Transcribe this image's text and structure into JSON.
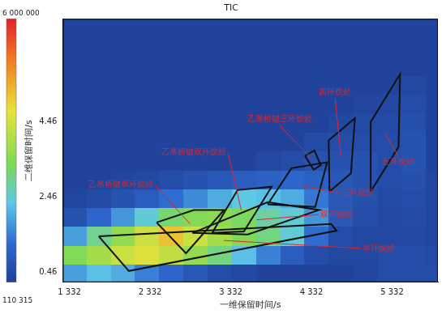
{
  "chart_data": {
    "type": "heatmap",
    "title": "TIC",
    "x_label": "一维保留时间/s",
    "y_label": "二维保留时间/s",
    "xlim": [
      1250,
      5900
    ],
    "xticks": [
      {
        "value": 1332,
        "label": "1 332"
      },
      {
        "value": 2332,
        "label": "2 332"
      },
      {
        "value": 3332,
        "label": "3 332"
      },
      {
        "value": 4332,
        "label": "4 332"
      },
      {
        "value": 5332,
        "label": "5 332"
      }
    ],
    "ylim": [
      0.2,
      7.2
    ],
    "yticks": [
      0.46,
      2.46,
      4.46
    ],
    "grid": false,
    "x_edges": [
      1250,
      1550,
      1850,
      2150,
      2450,
      2750,
      3050,
      3350,
      3650,
      3950,
      4250,
      4550,
      4850,
      5150,
      5450,
      5750,
      5900
    ],
    "y_edges": [
      0.2,
      0.7,
      1.2,
      1.7,
      2.2,
      2.7,
      3.2,
      3.7,
      4.2,
      4.7,
      5.2,
      5.7,
      6.2,
      6.7,
      7.2
    ],
    "cells": [
      [
        1500000,
        1800000,
        1600000,
        1200000,
        900000,
        600000,
        400000,
        300000,
        200000,
        200000,
        200000,
        200000,
        250000,
        400000,
        400000,
        400000
      ],
      [
        2800000,
        3200000,
        3600000,
        3800000,
        3500000,
        3000000,
        2500000,
        1800000,
        1200000,
        700000,
        400000,
        300000,
        300000,
        400000,
        400000,
        350000
      ],
      [
        1500000,
        2400000,
        3000000,
        3600000,
        4300000,
        3600000,
        3200000,
        2800000,
        2500000,
        2000000,
        1000000,
        400000,
        300000,
        300000,
        300000,
        250000
      ],
      [
        500000,
        900000,
        1400000,
        2000000,
        2600000,
        2800000,
        2900000,
        2700000,
        2300000,
        2000000,
        1400000,
        600000,
        400000,
        300000,
        350000,
        250000
      ],
      [
        250000,
        350000,
        500000,
        700000,
        1000000,
        1300000,
        1600000,
        1900000,
        1800000,
        1600000,
        1100000,
        600000,
        450000,
        350000,
        400000,
        250000
      ],
      [
        200000,
        200000,
        250000,
        300000,
        400000,
        500000,
        600000,
        700000,
        800000,
        900000,
        800000,
        600000,
        500000,
        400000,
        450000,
        250000
      ],
      [
        200000,
        200000,
        200000,
        200000,
        200000,
        200000,
        200000,
        200000,
        300000,
        400000,
        500000,
        500000,
        500000,
        400000,
        500000,
        200000
      ],
      [
        200000,
        200000,
        200000,
        200000,
        200000,
        200000,
        200000,
        200000,
        200000,
        200000,
        350000,
        400000,
        400000,
        400000,
        500000,
        200000
      ],
      [
        200000,
        200000,
        200000,
        200000,
        200000,
        200000,
        200000,
        200000,
        200000,
        200000,
        200000,
        300000,
        350000,
        350000,
        450000,
        200000
      ],
      [
        200000,
        200000,
        200000,
        200000,
        200000,
        200000,
        200000,
        200000,
        200000,
        200000,
        200000,
        200000,
        250000,
        300000,
        400000,
        200000
      ],
      [
        200000,
        200000,
        200000,
        200000,
        200000,
        200000,
        200000,
        200000,
        200000,
        200000,
        200000,
        200000,
        200000,
        200000,
        300000,
        200000
      ],
      [
        200000,
        200000,
        200000,
        200000,
        200000,
        200000,
        200000,
        200000,
        200000,
        200000,
        200000,
        200000,
        200000,
        200000,
        200000,
        200000
      ],
      [
        200000,
        200000,
        200000,
        200000,
        200000,
        200000,
        200000,
        200000,
        200000,
        200000,
        200000,
        200000,
        200000,
        200000,
        200000,
        200000
      ],
      [
        200000,
        200000,
        200000,
        200000,
        200000,
        200000,
        200000,
        200000,
        200000,
        200000,
        200000,
        200000,
        200000,
        200000,
        200000,
        200000
      ]
    ],
    "colorbar": {
      "range": [
        110315,
        6000000
      ],
      "ticks": [
        {
          "value": 110315,
          "label": "110 315"
        },
        {
          "value": 6000000,
          "label": "6 000 000"
        }
      ]
    },
    "regions": [
      {
        "label": "单环烷烃",
        "points": [
          [
            1696,
            1.42
          ],
          [
            4576,
            1.75
          ],
          [
            4645,
            1.57
          ],
          [
            2069,
            0.5
          ]
        ],
        "label_at": [
          5166,
          1.1
        ]
      },
      {
        "label": "双环烷烃",
        "points": [
          [
            2856,
            1.51
          ],
          [
            3790,
            2.33
          ],
          [
            4428,
            2.12
          ],
          [
            3544,
            1.47
          ]
        ],
        "label_at": [
          4645,
          2.0
        ]
      },
      {
        "label": "三环烷烃",
        "points": [
          [
            3790,
            2.27
          ],
          [
            4084,
            3.23
          ],
          [
            4527,
            3.39
          ],
          [
            4379,
            2.2
          ]
        ],
        "label_at": [
          4900,
          2.57
        ]
      },
      {
        "label": "乙基桥键单环烷烃",
        "points": [
          [
            2413,
            1.79
          ],
          [
            2875,
            2.12
          ],
          [
            3249,
            2.12
          ],
          [
            2777,
            0.97
          ]
        ],
        "label_at": [
          1971,
          2.78
        ]
      },
      {
        "label": "乙基桥键双环烷烃",
        "points": [
          [
            3101,
            1.51
          ],
          [
            3416,
            2.65
          ],
          [
            3839,
            2.74
          ],
          [
            3495,
            1.55
          ]
        ],
        "label_at": [
          2875,
          3.64
        ]
      },
      {
        "label": "乙基桥键三环烷烃",
        "points": [
          [
            4252,
            3.56
          ],
          [
            4369,
            3.7
          ],
          [
            4448,
            3.31
          ],
          [
            4360,
            3.19
          ]
        ],
        "label_at": [
          3937,
          4.52
        ]
      },
      {
        "label": "四环烷烃",
        "points": [
          [
            4556,
            2.61
          ],
          [
            4546,
            3.97
          ],
          [
            4871,
            4.56
          ],
          [
            4822,
            3.09
          ]
        ],
        "label_at": [
          4625,
          5.24
        ]
      },
      {
        "label": "五环烷烃",
        "points": [
          [
            5067,
            2.61
          ],
          [
            5067,
            4.46
          ],
          [
            5431,
            5.73
          ],
          [
            5412,
            3.8
          ]
        ],
        "label_at": [
          5412,
          3.39
        ]
      }
    ]
  }
}
